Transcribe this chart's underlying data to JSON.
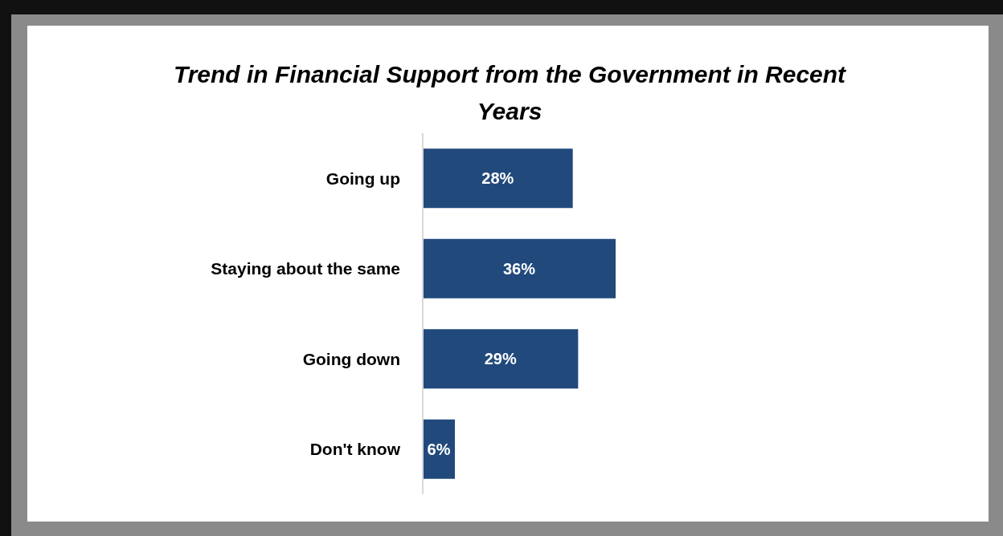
{
  "chart_data": {
    "type": "bar",
    "orientation": "horizontal",
    "title": "Trend in Financial Support from the Government in Recent Years",
    "categories": [
      "Going up",
      "Staying about the same",
      "Going down",
      "Don't know"
    ],
    "values": [
      28,
      36,
      29,
      6
    ],
    "value_labels": [
      "28%",
      "36%",
      "29%",
      "6%"
    ],
    "color": "#21497c"
  }
}
